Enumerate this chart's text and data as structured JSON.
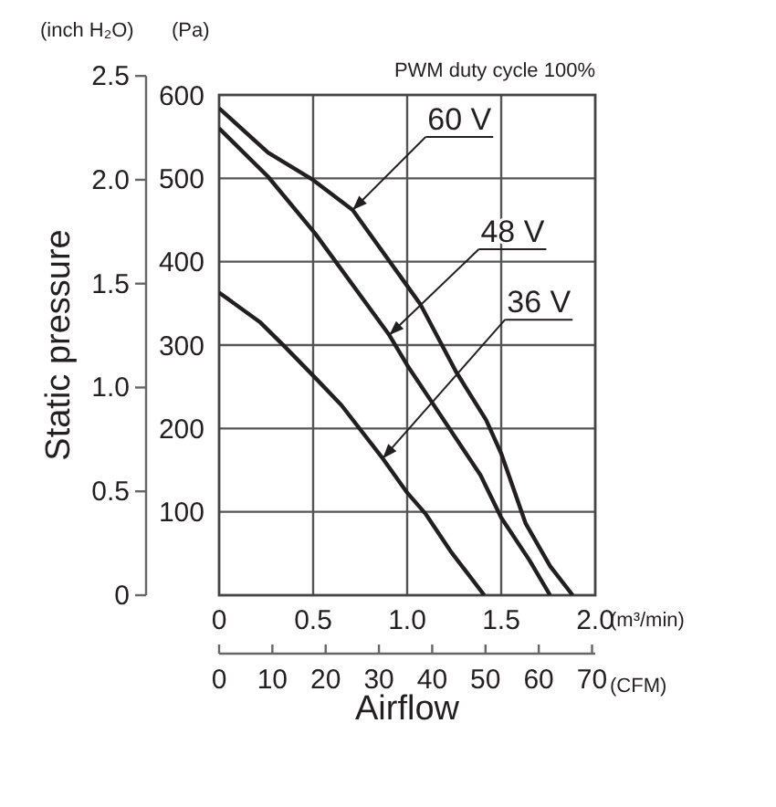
{
  "chart_data": {
    "type": "line",
    "title": "PWM duty cycle 100%",
    "xlabel": "(m³/min)",
    "x2label": "(CFM)",
    "ylabel": "(Pa)",
    "y2label": "(inch H₂O)",
    "xlim": [
      0,
      2.0
    ],
    "xticks": [
      0,
      0.5,
      {
        "value": 1,
        "label": "1.0"
      },
      1.5,
      {
        "value": 2,
        "label": "2.0"
      }
    ],
    "x2lim": [
      0,
      70.6
    ],
    "x2ticks": [
      0,
      10,
      20,
      30,
      40,
      50,
      60,
      70
    ],
    "ylim": [
      0,
      600
    ],
    "yticks": [
      100,
      200,
      300,
      400,
      500,
      600
    ],
    "y2lim": [
      0,
      2.5
    ],
    "y2ticks": [
      0,
      0.5,
      {
        "value": 1,
        "label": "1.0"
      },
      1.5,
      {
        "value": 2,
        "label": "2.0"
      },
      2.5
    ],
    "grid": true,
    "legend": false,
    "marker": "none",
    "line_style": "solid",
    "series": [
      {
        "color": "#231f20",
        "x": [
          0,
          0.26,
          0.5,
          0.71,
          1.0,
          1.07,
          1.26,
          1.42,
          1.5,
          1.63,
          1.76,
          1.88
        ],
        "values": [
          584,
          531,
          498,
          462,
          371,
          349,
          268,
          210,
          170,
          86,
          35,
          0
        ]
      },
      {
        "color": "#231f20",
        "x": [
          0,
          0.26,
          0.51,
          0.905,
          1.0,
          1.13,
          1.39,
          1.5,
          1.65,
          1.76
        ],
        "values": [
          560,
          502,
          434,
          312,
          276,
          232,
          144,
          93,
          42,
          0
        ]
      },
      {
        "color": "#231f20",
        "x": [
          0,
          0.22,
          0.35,
          0.51,
          0.65,
          0.87,
          1.0,
          1.1,
          1.23,
          1.41
        ],
        "values": [
          363,
          327,
          298,
          261,
          228,
          164,
          123,
          97,
          53,
          0
        ]
      }
    ],
    "annotations": [
      {
        "text": "60 V",
        "x": 0.71,
        "y": 462
      },
      {
        "text": "48 V",
        "x": 0.905,
        "y": 312
      },
      {
        "text": "36 V",
        "x": 0.87,
        "y": 164
      },
      "Static pressure",
      "Airflow"
    ]
  }
}
